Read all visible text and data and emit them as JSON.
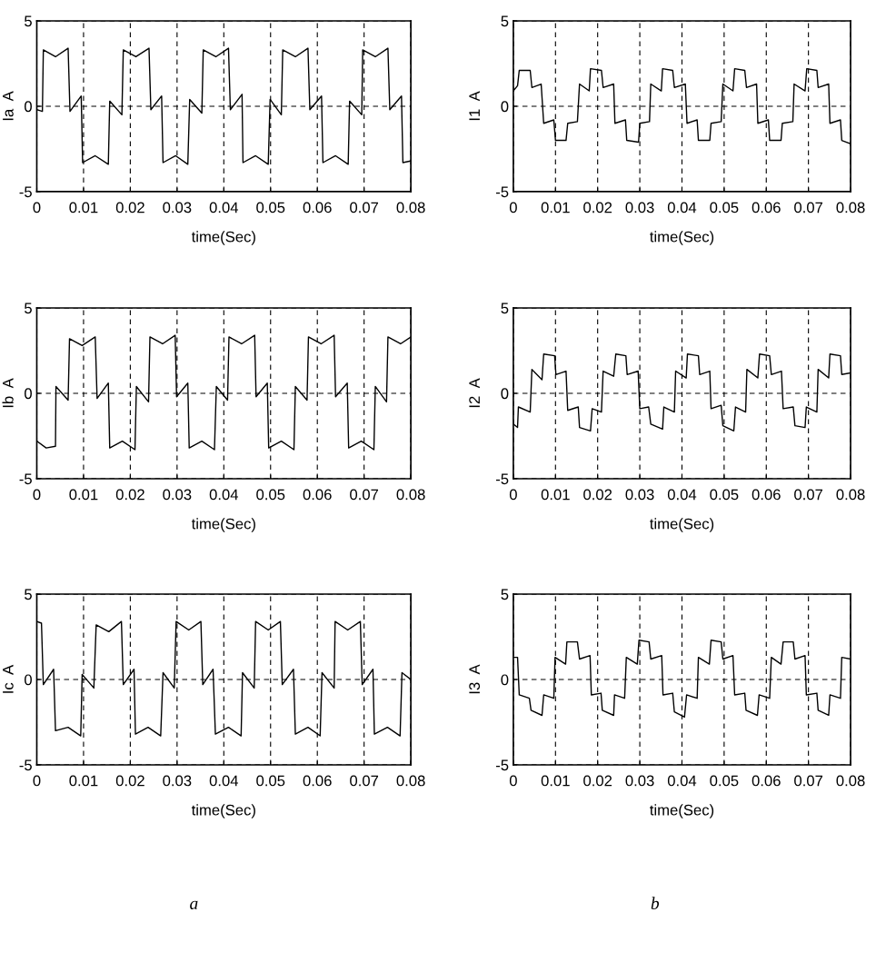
{
  "chart_data": [
    {
      "type": "line",
      "xlabel": "time(Sec)",
      "ylabel": "Ia  A",
      "color": "#000000",
      "xlim": [
        0,
        0.08
      ],
      "ylim": [
        -5,
        5
      ],
      "xticks": [
        0,
        0.01,
        0.02,
        0.03,
        0.04,
        0.05,
        0.06,
        0.07,
        0.08
      ],
      "yticks": [
        -5,
        0,
        5
      ],
      "grid": true,
      "x": [
        0,
        0.0012,
        0.0014,
        0.004,
        0.0067,
        0.0071,
        0.0095,
        0.0098,
        0.0125,
        0.0153,
        0.0156,
        0.0182,
        0.0185,
        0.0212,
        0.024,
        0.0244,
        0.0267,
        0.027,
        0.0297,
        0.0323,
        0.0327,
        0.0353,
        0.0356,
        0.0383,
        0.041,
        0.0414,
        0.0439,
        0.0441,
        0.0468,
        0.0495,
        0.0499,
        0.0523,
        0.0526,
        0.0553,
        0.058,
        0.0584,
        0.0609,
        0.0612,
        0.0639,
        0.0666,
        0.0669,
        0.0695,
        0.0697,
        0.0724,
        0.0751,
        0.0755,
        0.078,
        0.0783,
        0.08
      ],
      "values": [
        -0.2,
        -0.3,
        3.3,
        2.9,
        3.4,
        -0.3,
        0.6,
        -3.3,
        -2.9,
        -3.4,
        0.3,
        -0.5,
        3.3,
        2.9,
        3.4,
        -0.2,
        0.6,
        -3.3,
        -2.9,
        -3.4,
        0.4,
        -0.4,
        3.3,
        2.9,
        3.4,
        -0.2,
        0.7,
        -3.3,
        -2.9,
        -3.4,
        0.4,
        -0.5,
        3.3,
        2.9,
        3.4,
        -0.2,
        0.6,
        -3.3,
        -2.9,
        -3.4,
        0.3,
        -0.5,
        3.3,
        2.9,
        3.4,
        -0.2,
        0.6,
        -3.3,
        -3.2
      ]
    },
    {
      "type": "line",
      "xlabel": "time(Sec)",
      "ylabel": "I1  A",
      "color": "#000000",
      "xlim": [
        0,
        0.08
      ],
      "ylim": [
        -5,
        5
      ],
      "xticks": [
        0,
        0.01,
        0.02,
        0.03,
        0.04,
        0.05,
        0.06,
        0.07,
        0.08
      ],
      "yticks": [
        -5,
        0,
        5
      ],
      "grid": true,
      "x": [
        0,
        0.001,
        0.0014,
        0.004,
        0.0044,
        0.0066,
        0.0072,
        0.0096,
        0.01,
        0.0125,
        0.0129,
        0.0152,
        0.0157,
        0.018,
        0.0183,
        0.0209,
        0.0213,
        0.0238,
        0.0241,
        0.0266,
        0.0269,
        0.0297,
        0.03,
        0.0323,
        0.0326,
        0.0351,
        0.0354,
        0.0378,
        0.0382,
        0.0408,
        0.0412,
        0.0436,
        0.0439,
        0.0466,
        0.0469,
        0.0493,
        0.0497,
        0.0521,
        0.0525,
        0.0549,
        0.0553,
        0.0577,
        0.058,
        0.0605,
        0.0608,
        0.0635,
        0.0638,
        0.0663,
        0.0666,
        0.0692,
        0.0696,
        0.072,
        0.0723,
        0.0748,
        0.0751,
        0.0776,
        0.0779,
        0.08
      ],
      "values": [
        0.9,
        1.2,
        2.1,
        2.1,
        1.1,
        1.3,
        -1.0,
        -0.8,
        -2.0,
        -2.0,
        -1.0,
        -0.9,
        1.3,
        0.9,
        2.2,
        2.1,
        1.1,
        1.3,
        -1.0,
        -0.8,
        -2.0,
        -2.1,
        -1.0,
        -0.9,
        1.3,
        0.9,
        2.2,
        2.1,
        1.1,
        1.3,
        -1.0,
        -0.8,
        -2.0,
        -2.0,
        -1.0,
        -0.9,
        1.3,
        0.9,
        2.2,
        2.1,
        1.1,
        1.3,
        -1.0,
        -0.8,
        -2.0,
        -2.0,
        -1.0,
        -0.9,
        1.3,
        0.9,
        2.2,
        2.1,
        1.1,
        1.3,
        -1.0,
        -0.8,
        -2.0,
        -2.2
      ]
    },
    {
      "type": "line",
      "xlabel": "time(Sec)",
      "ylabel": "Ib  A",
      "color": "#000000",
      "xlim": [
        0,
        0.08
      ],
      "ylim": [
        -5,
        5
      ],
      "xticks": [
        0,
        0.01,
        0.02,
        0.03,
        0.04,
        0.05,
        0.06,
        0.07,
        0.08
      ],
      "yticks": [
        -5,
        0,
        5
      ],
      "grid": true,
      "x": [
        0,
        0.002,
        0.004,
        0.0041,
        0.0067,
        0.007,
        0.0097,
        0.0125,
        0.0129,
        0.0153,
        0.0156,
        0.0183,
        0.021,
        0.0213,
        0.0239,
        0.0242,
        0.0269,
        0.0296,
        0.0299,
        0.0323,
        0.0326,
        0.0353,
        0.038,
        0.0384,
        0.0408,
        0.0411,
        0.0438,
        0.0466,
        0.0469,
        0.0493,
        0.0496,
        0.0523,
        0.055,
        0.0553,
        0.0578,
        0.0581,
        0.0608,
        0.0636,
        0.0639,
        0.0664,
        0.0667,
        0.0694,
        0.0721,
        0.0724,
        0.0748,
        0.0751,
        0.0778,
        0.08
      ],
      "values": [
        -2.8,
        -3.2,
        -3.1,
        0.4,
        -0.4,
        3.2,
        2.8,
        3.3,
        -0.3,
        0.6,
        -3.2,
        -2.8,
        -3.3,
        0.4,
        -0.5,
        3.3,
        2.9,
        3.4,
        -0.2,
        0.6,
        -3.2,
        -2.8,
        -3.3,
        0.4,
        -0.4,
        3.3,
        2.9,
        3.4,
        -0.2,
        0.6,
        -3.2,
        -2.8,
        -3.3,
        0.4,
        -0.4,
        3.3,
        2.9,
        3.4,
        -0.2,
        0.6,
        -3.2,
        -2.8,
        -3.3,
        0.4,
        -0.5,
        3.3,
        2.9,
        3.3
      ]
    },
    {
      "type": "line",
      "xlabel": "time(Sec)",
      "ylabel": "I2  A",
      "color": "#000000",
      "xlim": [
        0,
        0.08
      ],
      "ylim": [
        -5,
        5
      ],
      "xticks": [
        0,
        0.01,
        0.02,
        0.03,
        0.04,
        0.05,
        0.06,
        0.07,
        0.08
      ],
      "yticks": [
        -5,
        0,
        5
      ],
      "grid": true,
      "x": [
        0,
        0.001,
        0.0012,
        0.004,
        0.0044,
        0.0068,
        0.0072,
        0.0098,
        0.0101,
        0.0125,
        0.0129,
        0.0154,
        0.0157,
        0.0183,
        0.0187,
        0.0209,
        0.0213,
        0.0238,
        0.0243,
        0.0267,
        0.027,
        0.0296,
        0.03,
        0.0321,
        0.0326,
        0.0354,
        0.0357,
        0.0382,
        0.0385,
        0.041,
        0.0413,
        0.0439,
        0.0442,
        0.0466,
        0.0469,
        0.0493,
        0.0497,
        0.0523,
        0.0527,
        0.0551,
        0.0554,
        0.058,
        0.0584,
        0.0608,
        0.0612,
        0.0636,
        0.064,
        0.0664,
        0.0668,
        0.0692,
        0.0695,
        0.072,
        0.0723,
        0.0748,
        0.0751,
        0.0776,
        0.0779,
        0.08
      ],
      "values": [
        -1.8,
        -2.0,
        -0.8,
        -1.1,
        1.4,
        0.8,
        2.3,
        2.2,
        1.1,
        1.3,
        -1.0,
        -0.8,
        -2.0,
        -2.2,
        -0.9,
        -1.1,
        1.3,
        1.0,
        2.3,
        2.2,
        1.1,
        1.3,
        -0.9,
        -0.8,
        -1.8,
        -2.1,
        -0.8,
        -1.1,
        1.3,
        0.9,
        2.3,
        2.2,
        1.1,
        1.3,
        -0.9,
        -0.7,
        -1.9,
        -2.2,
        -0.8,
        -1.1,
        1.4,
        0.9,
        2.3,
        2.2,
        1.1,
        1.3,
        -0.9,
        -0.8,
        -1.9,
        -2.0,
        -0.8,
        -1.1,
        1.4,
        0.9,
        2.3,
        2.2,
        1.1,
        1.2
      ]
    },
    {
      "type": "line",
      "xlabel": "time(Sec)",
      "ylabel": "Ic  A",
      "color": "#000000",
      "xlim": [
        0,
        0.08
      ],
      "ylim": [
        -5,
        5
      ],
      "xticks": [
        0,
        0.01,
        0.02,
        0.03,
        0.04,
        0.05,
        0.06,
        0.07,
        0.08
      ],
      "yticks": [
        -5,
        0,
        5
      ],
      "grid": true,
      "annotations": [
        "a"
      ],
      "x": [
        0,
        0.001,
        0.0014,
        0.0036,
        0.004,
        0.0067,
        0.0094,
        0.0097,
        0.0122,
        0.0127,
        0.0154,
        0.0181,
        0.0185,
        0.0208,
        0.0211,
        0.0238,
        0.0265,
        0.027,
        0.0294,
        0.0298,
        0.0325,
        0.0351,
        0.0355,
        0.0377,
        0.0382,
        0.041,
        0.0437,
        0.044,
        0.0465,
        0.0468,
        0.0495,
        0.0521,
        0.0525,
        0.0549,
        0.0553,
        0.058,
        0.0606,
        0.061,
        0.0636,
        0.0638,
        0.0665,
        0.0692,
        0.0696,
        0.0719,
        0.0722,
        0.075,
        0.0777,
        0.0781,
        0.08
      ],
      "values": [
        3.4,
        3.3,
        -0.3,
        0.6,
        -3.0,
        -2.8,
        -3.3,
        0.3,
        -0.5,
        3.2,
        2.8,
        3.4,
        -0.3,
        0.6,
        -3.2,
        -2.8,
        -3.3,
        0.4,
        -0.5,
        3.4,
        2.9,
        3.4,
        -0.3,
        0.6,
        -3.2,
        -2.8,
        -3.3,
        0.4,
        -0.5,
        3.4,
        2.9,
        3.4,
        -0.3,
        0.6,
        -3.2,
        -2.8,
        -3.3,
        0.4,
        -0.5,
        3.4,
        2.9,
        3.4,
        -0.3,
        0.6,
        -3.2,
        -2.8,
        -3.3,
        0.4,
        0.0
      ]
    },
    {
      "type": "line",
      "xlabel": "time(Sec)",
      "ylabel": "I3  A",
      "color": "#000000",
      "xlim": [
        0,
        0.08
      ],
      "ylim": [
        -5,
        5
      ],
      "xticks": [
        0,
        0.01,
        0.02,
        0.03,
        0.04,
        0.05,
        0.06,
        0.07,
        0.08
      ],
      "yticks": [
        -5,
        0,
        5
      ],
      "grid": true,
      "annotations": [
        "b"
      ],
      "x": [
        0,
        0.001,
        0.0014,
        0.0038,
        0.0042,
        0.0068,
        0.0072,
        0.0096,
        0.0099,
        0.0124,
        0.0127,
        0.0152,
        0.0157,
        0.0182,
        0.0185,
        0.0208,
        0.0211,
        0.0238,
        0.024,
        0.0264,
        0.0268,
        0.0294,
        0.0298,
        0.0322,
        0.0326,
        0.0352,
        0.0355,
        0.0378,
        0.0382,
        0.0406,
        0.0411,
        0.0436,
        0.0439,
        0.0465,
        0.0469,
        0.0493,
        0.0497,
        0.0521,
        0.0525,
        0.0549,
        0.0552,
        0.0579,
        0.0583,
        0.0608,
        0.0612,
        0.0635,
        0.064,
        0.0664,
        0.0668,
        0.0692,
        0.0695,
        0.072,
        0.0723,
        0.0748,
        0.0751,
        0.0776,
        0.0779,
        0.08
      ],
      "values": [
        1.3,
        1.3,
        -0.9,
        -1.1,
        -1.8,
        -2.1,
        -0.9,
        -1.1,
        1.3,
        0.9,
        2.2,
        2.2,
        1.2,
        1.4,
        -0.9,
        -0.8,
        -1.8,
        -2.1,
        -0.9,
        -1.1,
        1.3,
        0.9,
        2.3,
        2.2,
        1.2,
        1.4,
        -0.9,
        -0.8,
        -1.9,
        -2.2,
        -0.9,
        -1.1,
        1.3,
        0.9,
        2.3,
        2.2,
        1.2,
        1.4,
        -0.9,
        -0.8,
        -1.8,
        -2.1,
        -0.9,
        -1.1,
        1.3,
        0.9,
        2.2,
        2.2,
        1.2,
        1.4,
        -0.9,
        -0.8,
        -1.8,
        -2.1,
        -0.9,
        -1.1,
        1.3,
        1.2
      ]
    }
  ]
}
